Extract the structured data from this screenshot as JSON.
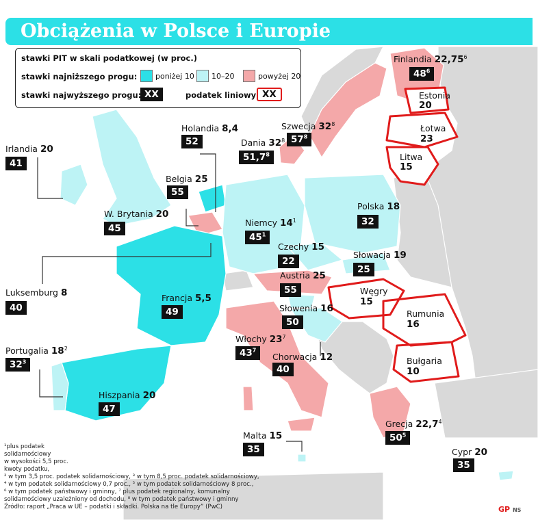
{
  "title": "Obciążenia w Polsce i Europie",
  "legend": {
    "heading": "stawki PIT w skali podatkowej (w proc.)",
    "lowest_label": "stawki najniższego progu:",
    "lowest_items": [
      {
        "label": "poniżej 10",
        "color": "#2ce0e6"
      },
      {
        "label": "10–20",
        "color": "#bdf3f5"
      },
      {
        "label": "powyżej 20",
        "color": "#f4a8a9"
      }
    ],
    "highest_label": "stawki najwyższego progu:",
    "highest_sample": "XX",
    "flat_label": "podatek liniowy:",
    "flat_sample": "XX"
  },
  "countries": [
    {
      "name": "Finlandia",
      "low": "22,75",
      "low_sup": "6",
      "high": "48",
      "high_sup": "6"
    },
    {
      "name": "Estonia",
      "flat": "20"
    },
    {
      "name": "Łotwa",
      "flat": "23"
    },
    {
      "name": "Litwa",
      "flat": "15"
    },
    {
      "name": "Szwecja",
      "low": "32",
      "low_sup": "8",
      "high": "57",
      "high_sup": "8"
    },
    {
      "name": "Dania",
      "low": "32",
      "low_sup": "8",
      "high": "51,7",
      "high_sup": "8"
    },
    {
      "name": "Holandia",
      "low": "8,4",
      "high": "52"
    },
    {
      "name": "Irlandia",
      "low": "20",
      "high": "41"
    },
    {
      "name": "Belgia",
      "low": "25",
      "high": "55"
    },
    {
      "name": "W. Brytania",
      "low": "20",
      "high": "45"
    },
    {
      "name": "Niemcy",
      "low": "14",
      "low_sup": "1",
      "high": "45",
      "high_sup": "1"
    },
    {
      "name": "Polska",
      "low": "18",
      "high": "32"
    },
    {
      "name": "Czechy",
      "low": "15",
      "high": "22"
    },
    {
      "name": "Słowacja",
      "low": "19",
      "high": "25"
    },
    {
      "name": "Luksemburg",
      "low": "8",
      "high": "40"
    },
    {
      "name": "Austria",
      "low": "25",
      "high": "55"
    },
    {
      "name": "Węgry",
      "flat": "15"
    },
    {
      "name": "Francja",
      "low": "5,5",
      "high": "49"
    },
    {
      "name": "Słowenia",
      "low": "16",
      "high": "50"
    },
    {
      "name": "Rumunia",
      "flat": "16"
    },
    {
      "name": "Portugalia",
      "low": "18",
      "low_sup": "2",
      "high": "32",
      "high_sup": "3"
    },
    {
      "name": "Włochy",
      "low": "23",
      "low_sup": "7",
      "high": "43",
      "high_sup": "7"
    },
    {
      "name": "Chorwacja",
      "low": "12",
      "high": "40"
    },
    {
      "name": "Bułgaria",
      "flat": "10"
    },
    {
      "name": "Hiszpania",
      "low": "20",
      "high": "47"
    },
    {
      "name": "Malta",
      "low": "15",
      "high": "35"
    },
    {
      "name": "Grecja",
      "low": "22,7",
      "low_sup": "4",
      "high": "50",
      "high_sup": "5"
    },
    {
      "name": "Cypr",
      "low": "20",
      "high": "35"
    }
  ],
  "footnotes": [
    "¹plus podatek",
    "solidarnościowy",
    "w wysokości 5,5 proc.",
    "kwoty podatku,",
    "² w tym 3,5 proc. podatek solidarnościowy, ³ w tym 8,5 proc. podatek solidarnościowy,",
    "⁴ w tym podatek solidarnościowy 0,7 proc., ⁵ w tym podatek solidarnościowy 8 proc.,",
    "⁶ w tym podatek państwowy i gminny, ⁷ plus podatek regionalny, komunalny",
    "solidarnościowy uzależniony od dochodu, ⁸ w tym podatek państwowy i gminny",
    "Źródło: raport „Praca w UE – podatki i składki. Polska na tle Europy” (PwC)"
  ],
  "logo": {
    "mark": "GP",
    "agency": "NS"
  },
  "colors": {
    "low": "#2ce0e6",
    "mid": "#bdf3f5",
    "high": "#f4a8a9",
    "non_eu": "#d9d9d9",
    "sea": "#ffffff",
    "flat_border": "#e01b1b"
  }
}
